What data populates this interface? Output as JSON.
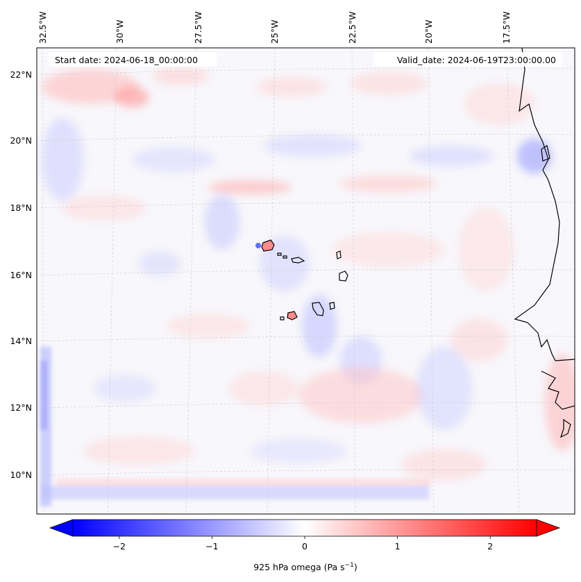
{
  "map": {
    "lon_labels": [
      "32.5°W",
      "30°W",
      "27.5°W",
      "25°W",
      "22.5°W",
      "20°W",
      "17.5°W"
    ],
    "lat_labels": [
      "22°N",
      "20°N",
      "18°N",
      "16°N",
      "14°N",
      "12°N",
      "10°N"
    ],
    "start_date": "Start date: 2024-06-18_00:00:00",
    "valid_date": "Valid_date: 2024-06-19T23:00:00.00"
  },
  "colorbar": {
    "ticks": [
      "−2",
      "−1",
      "0",
      "1",
      "2"
    ],
    "tick_values": [
      -2,
      -1,
      0,
      1,
      2
    ],
    "range": [
      -2.5,
      2.5
    ],
    "label_main": "925 hPa omega (Pa s",
    "label_exp": "−1",
    "label_close": ")",
    "colormap": "bwr",
    "low_color": "#0000ff",
    "mid_color": "#ffffff",
    "high_color": "#ff0000"
  }
}
